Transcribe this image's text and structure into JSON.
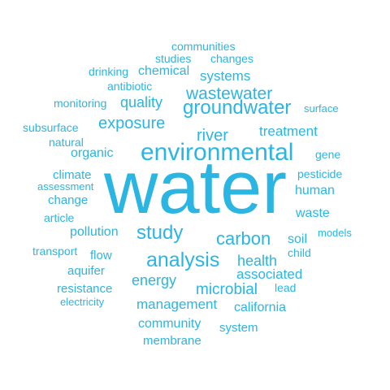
{
  "wordcloud": {
    "color": "#2bb5e2",
    "words": [
      {
        "text": "water"
      },
      {
        "text": "environmental"
      },
      {
        "text": "analysis"
      },
      {
        "text": "groundwater"
      },
      {
        "text": "study"
      },
      {
        "text": "carbon"
      },
      {
        "text": "wastewater"
      },
      {
        "text": "exposure"
      },
      {
        "text": "river"
      },
      {
        "text": "microbial"
      },
      {
        "text": "quality"
      },
      {
        "text": "energy"
      },
      {
        "text": "health"
      },
      {
        "text": "treatment"
      },
      {
        "text": "management"
      },
      {
        "text": "systems"
      },
      {
        "text": "associated"
      },
      {
        "text": "chemical"
      },
      {
        "text": "pollution"
      },
      {
        "text": "california"
      },
      {
        "text": "organic"
      },
      {
        "text": "community"
      },
      {
        "text": "soil"
      },
      {
        "text": "human"
      },
      {
        "text": "waste"
      },
      {
        "text": "climate"
      },
      {
        "text": "change"
      },
      {
        "text": "flow"
      },
      {
        "text": "aquifer"
      },
      {
        "text": "resistance"
      },
      {
        "text": "system"
      },
      {
        "text": "membrane"
      },
      {
        "text": "monitoring"
      },
      {
        "text": "pesticide"
      },
      {
        "text": "communities"
      },
      {
        "text": "changes"
      },
      {
        "text": "studies"
      },
      {
        "text": "antibiotic"
      },
      {
        "text": "drinking"
      },
      {
        "text": "subsurface"
      },
      {
        "text": "natural"
      },
      {
        "text": "gene"
      },
      {
        "text": "article"
      },
      {
        "text": "child"
      },
      {
        "text": "lead"
      },
      {
        "text": "transport"
      },
      {
        "text": "surface"
      },
      {
        "text": "assessment"
      },
      {
        "text": "models"
      },
      {
        "text": "electricity"
      }
    ]
  }
}
